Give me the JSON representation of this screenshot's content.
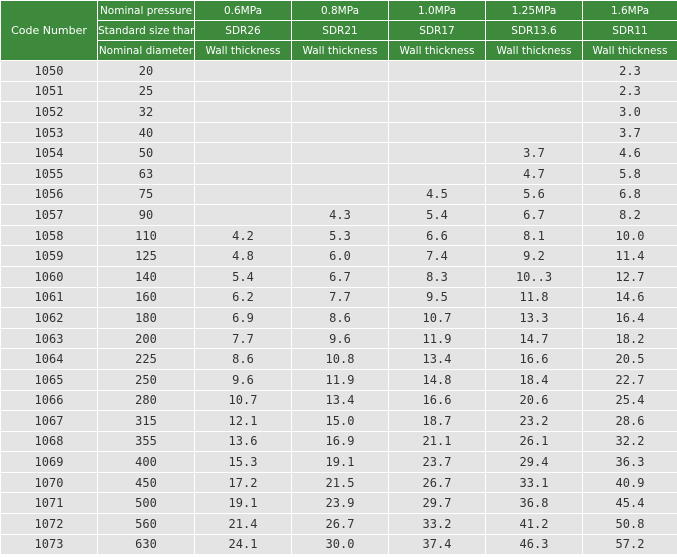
{
  "table": {
    "code_header": "Code Number",
    "row_labels": [
      "Nominal pressure",
      "Standard size than",
      "Nominal diameter"
    ],
    "pressures": [
      "0.6MPa",
      "0.8MPa",
      "1.0MPa",
      "1.25MPa",
      "1.6MPa"
    ],
    "sdr": [
      "SDR26",
      "SDR21",
      "SDR17",
      "SDR13.6",
      "SDR11"
    ],
    "thickness_labels": [
      "Wall thickness",
      "Wall thickness",
      "Wall thickness",
      "Wall thickness",
      "Wall thickness"
    ],
    "rows": [
      [
        "1050",
        "20",
        null,
        null,
        null,
        null,
        "2.3"
      ],
      [
        "1051",
        "25",
        null,
        null,
        null,
        null,
        "2.3"
      ],
      [
        "1052",
        "32",
        null,
        null,
        null,
        null,
        "3.0"
      ],
      [
        "1053",
        "40",
        null,
        null,
        null,
        null,
        "3.7"
      ],
      [
        "1054",
        "50",
        null,
        null,
        null,
        "3.7",
        "4.6"
      ],
      [
        "1055",
        "63",
        null,
        null,
        null,
        "4.7",
        "5.8"
      ],
      [
        "1056",
        "75",
        null,
        null,
        "4.5",
        "5.6",
        "6.8"
      ],
      [
        "1057",
        "90",
        null,
        "4.3",
        "5.4",
        "6.7",
        "8.2"
      ],
      [
        "1058",
        "110",
        "4.2",
        "5.3",
        "6.6",
        "8.1",
        "10.0"
      ],
      [
        "1059",
        "125",
        "4.8",
        "6.0",
        "7.4",
        "9.2",
        "11.4"
      ],
      [
        "1060",
        "140",
        "5.4",
        "6.7",
        "8.3",
        "10..3",
        "12.7"
      ],
      [
        "1061",
        "160",
        "6.2",
        "7.7",
        "9.5",
        "11.8",
        "14.6"
      ],
      [
        "1062",
        "180",
        "6.9",
        "8.6",
        "10.7",
        "13.3",
        "16.4"
      ],
      [
        "1063",
        "200",
        "7.7",
        "9.6",
        "11.9",
        "14.7",
        "18.2"
      ],
      [
        "1064",
        "225",
        "8.6",
        "10.8",
        "13.4",
        "16.6",
        "20.5"
      ],
      [
        "1065",
        "250",
        "9.6",
        "11.9",
        "14.8",
        "18.4",
        "22.7"
      ],
      [
        "1066",
        "280",
        "10.7",
        "13.4",
        "16.6",
        "20.6",
        "25.4"
      ],
      [
        "1067",
        "315",
        "12.1",
        "15.0",
        "18.7",
        "23.2",
        "28.6"
      ],
      [
        "1068",
        "355",
        "13.6",
        "16.9",
        "21.1",
        "26.1",
        "32.2"
      ],
      [
        "1069",
        "400",
        "15.3",
        "19.1",
        "23.7",
        "29.4",
        "36.3"
      ],
      [
        "1070",
        "450",
        "17.2",
        "21.5",
        "26.7",
        "33.1",
        "40.9"
      ],
      [
        "1071",
        "500",
        "19.1",
        "23.9",
        "29.7",
        "36.8",
        "45.4"
      ],
      [
        "1072",
        "560",
        "21.4",
        "26.7",
        "33.2",
        "41.2",
        "50.8"
      ],
      [
        "1073",
        "630",
        "24.1",
        "30.0",
        "37.4",
        "46.3",
        "57.2"
      ]
    ]
  }
}
